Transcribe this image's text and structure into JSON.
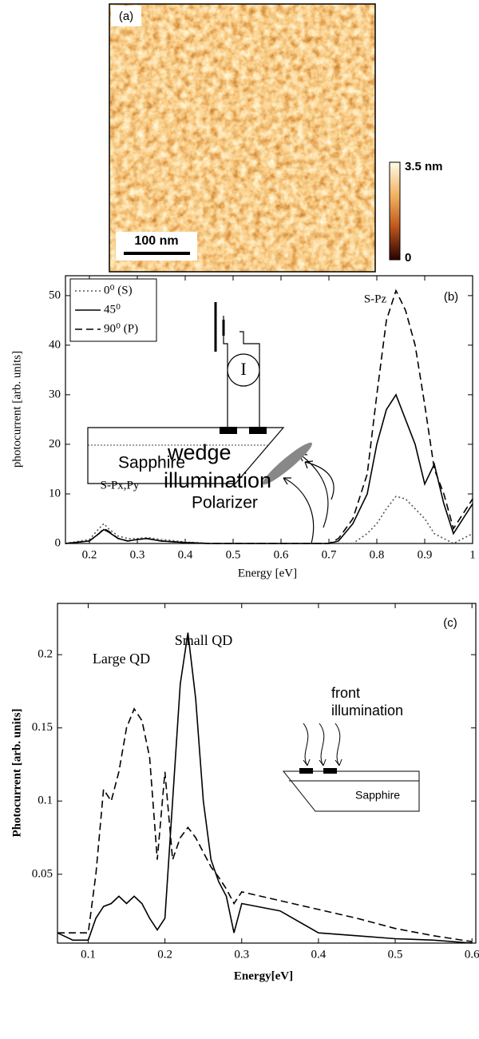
{
  "chart_data": [
    {
      "type": "image",
      "label": "(a)",
      "scale_bar": "100 nm",
      "colorbar": [
        "3.5 nm",
        "0"
      ]
    },
    {
      "type": "line",
      "label": "(b)",
      "xlabel": "Energy [eV]",
      "ylabel": "photocurrent [arb. units]",
      "xlim": [
        0.15,
        1
      ],
      "ylim": [
        0,
        54
      ],
      "xticks": [
        0.2,
        0.3,
        0.4,
        0.5,
        0.6,
        0.7,
        0.8,
        0.9,
        1
      ],
      "yticks": [
        0,
        10,
        20,
        30,
        40,
        50
      ],
      "legend": "upper left",
      "x": [
        0.15,
        0.2,
        0.22,
        0.23,
        0.24,
        0.26,
        0.28,
        0.3,
        0.32,
        0.35,
        0.4,
        0.45,
        0.5,
        0.6,
        0.7,
        0.72,
        0.75,
        0.78,
        0.8,
        0.82,
        0.84,
        0.86,
        0.88,
        0.9,
        0.92,
        0.94,
        0.96,
        0.98,
        1.0
      ],
      "series": [
        {
          "name": "0⁰ (S)",
          "color": "#555555",
          "style": "dotted",
          "values": [
            0,
            0.8,
            3,
            4,
            3,
            1.5,
            1,
            1,
            1.2,
            0.8,
            0.3,
            0,
            0,
            0,
            0,
            0,
            0,
            2,
            4,
            7,
            9.5,
            9,
            7,
            5,
            2,
            1,
            0,
            1,
            2
          ]
        },
        {
          "name": "45⁰",
          "color": "#000000",
          "style": "solid",
          "values": [
            0,
            0.5,
            2,
            2.8,
            2.3,
            1,
            0.5,
            0.8,
            1,
            0.5,
            0.2,
            0,
            0,
            0,
            0,
            0.5,
            4,
            10,
            20,
            27,
            30,
            25,
            20,
            12,
            16,
            8,
            2,
            5,
            8
          ]
        },
        {
          "name": "90⁰ (P)",
          "color": "#000000",
          "style": "dashed",
          "values": [
            0,
            0.5,
            2,
            3,
            2.5,
            1,
            0.5,
            0.8,
            1,
            0.5,
            0.2,
            0,
            0,
            0,
            0,
            1,
            5,
            14,
            30,
            45,
            51,
            47,
            40,
            28,
            15,
            10,
            3,
            6,
            9
          ]
        }
      ],
      "annotations": [
        "S-Pz",
        "S-Px,Py",
        "wedge",
        "illumination",
        "Sapphire",
        "Polarizer",
        "I"
      ]
    },
    {
      "type": "line",
      "label": "(c)",
      "xlabel": "Energy[eV]",
      "ylabel": "Photocurrent [arb. units]",
      "xlim": [
        0.06,
        0.605
      ],
      "ylim": [
        0.003,
        0.235
      ],
      "xticks": [
        0.1,
        0.2,
        0.3,
        0.4,
        0.5,
        0.6
      ],
      "yticks": [
        0.05,
        0.1,
        0.15,
        0.2
      ],
      "x": [
        0.06,
        0.08,
        0.1,
        0.11,
        0.12,
        0.13,
        0.14,
        0.15,
        0.16,
        0.17,
        0.18,
        0.19,
        0.2,
        0.21,
        0.22,
        0.23,
        0.24,
        0.25,
        0.26,
        0.27,
        0.28,
        0.29,
        0.3,
        0.35,
        0.4,
        0.45,
        0.5,
        0.55,
        0.6
      ],
      "series": [
        {
          "color": "#000000",
          "style": "dashed",
          "values": [
            0.01,
            0.01,
            0.01,
            0.05,
            0.108,
            0.1,
            0.12,
            0.15,
            0.163,
            0.155,
            0.13,
            0.06,
            0.12,
            0.06,
            0.075,
            0.082,
            0.075,
            0.065,
            0.055,
            0.048,
            0.04,
            0.03,
            0.038,
            0.032,
            0.026,
            0.02,
            0.013,
            0.008,
            0.004
          ]
        },
        {
          "color": "#000000",
          "style": "solid",
          "values": [
            0.01,
            0.005,
            0.005,
            0.02,
            0.028,
            0.03,
            0.035,
            0.03,
            0.035,
            0.03,
            0.02,
            0.012,
            0.02,
            0.1,
            0.18,
            0.215,
            0.17,
            0.1,
            0.06,
            0.045,
            0.035,
            0.01,
            0.03,
            0.025,
            0.01,
            0.008,
            0.006,
            0.005,
            0.003
          ]
        }
      ],
      "annotations": [
        "Large QD",
        "Small QD",
        "front",
        "illumination",
        "Sapphire"
      ]
    }
  ]
}
